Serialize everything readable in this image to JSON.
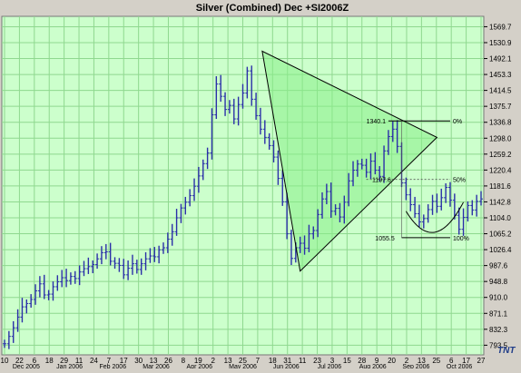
{
  "chart_data": {
    "type": "bar",
    "subtype": "ohlc",
    "title": "Silver (Combined) Dec +SI2006Z",
    "logo": "TNT",
    "ylim": [
      770.0,
      1595.0
    ],
    "y_ticks": [
      "1569.7",
      "1530.9",
      "1492.1",
      "1453.3",
      "1414.5",
      "1375.7",
      "1336.8",
      "1298.0",
      "1259.2",
      "1220.4",
      "1181.6",
      "1142.8",
      "1104.0",
      "1065.2",
      "1026.4",
      "987.6",
      "948.8",
      "910.0",
      "871.1",
      "832.3",
      "793.5"
    ],
    "grid": true,
    "colors": {
      "page": "#d4d0c8",
      "plot_bg": "#ccffcc",
      "grid": "#8fd88f",
      "bars": "#2b2fa8",
      "triangle_fill": "#88ee88",
      "lines": "#000000"
    },
    "x_day_ticks": [
      "10",
      "22",
      "6",
      "18",
      "29",
      "11",
      "24",
      "7",
      "17",
      "30",
      "13",
      "26",
      "8",
      "19",
      "2",
      "13",
      "25",
      "7",
      "18",
      "31",
      "11",
      "23",
      "3",
      "15",
      "28",
      "9",
      "20",
      "2",
      "13",
      "25",
      "6",
      "17",
      "27"
    ],
    "x_month_labels": [
      "Dec 2005",
      "Jan 2006",
      "Feb 2006",
      "Mar 2006",
      "Apr 2006",
      "May 2006",
      "Jun 2006",
      "Jul 2006",
      "Aug 2006",
      "Sep 2006",
      "Oct 2006"
    ],
    "series": [
      {
        "type": "ohlc",
        "points": [
          [
            0,
            797
          ],
          [
            5,
            815
          ],
          [
            10,
            836
          ],
          [
            15,
            862
          ],
          [
            20,
            887
          ],
          [
            25,
            895
          ],
          [
            30,
            905
          ],
          [
            35,
            926
          ],
          [
            40,
            943
          ],
          [
            45,
            916
          ],
          [
            50,
            918
          ],
          [
            55,
            936
          ],
          [
            60,
            948
          ],
          [
            65,
            958
          ],
          [
            70,
            951
          ],
          [
            75,
            961
          ],
          [
            80,
            956
          ],
          [
            85,
            972
          ],
          [
            90,
            980
          ],
          [
            95,
            985
          ],
          [
            100,
            990
          ],
          [
            105,
            1004
          ],
          [
            110,
            1019
          ],
          [
            115,
            1021
          ],
          [
            120,
            998
          ],
          [
            125,
            993
          ],
          [
            130,
            988
          ],
          [
            135,
            965
          ],
          [
            140,
            981
          ],
          [
            145,
            992
          ],
          [
            150,
            978
          ],
          [
            155,
            992
          ],
          [
            160,
            1004
          ],
          [
            165,
            1011
          ],
          [
            170,
            1009
          ],
          [
            175,
            1026
          ],
          [
            180,
            1031
          ],
          [
            185,
            1052
          ],
          [
            190,
            1070
          ],
          [
            195,
            1104
          ],
          [
            200,
            1128
          ],
          [
            205,
            1142
          ],
          [
            210,
            1158
          ],
          [
            215,
            1181
          ],
          [
            220,
            1206
          ],
          [
            225,
            1236
          ],
          [
            230,
            1262
          ],
          [
            235,
            1355
          ],
          [
            240,
            1430
          ],
          [
            245,
            1400
          ],
          [
            250,
            1368
          ],
          [
            255,
            1378
          ],
          [
            260,
            1345
          ],
          [
            265,
            1380
          ],
          [
            270,
            1408
          ],
          [
            275,
            1462
          ],
          [
            280,
            1393
          ],
          [
            285,
            1353
          ],
          [
            290,
            1320
          ],
          [
            295,
            1300
          ],
          [
            300,
            1280
          ],
          [
            305,
            1252
          ],
          [
            310,
            1200
          ],
          [
            315,
            1143
          ],
          [
            320,
            1065
          ],
          [
            325,
            1005
          ],
          [
            330,
            1031
          ],
          [
            335,
            1042
          ],
          [
            340,
            1030
          ],
          [
            345,
            1065
          ],
          [
            350,
            1073
          ],
          [
            355,
            1112
          ],
          [
            360,
            1150
          ],
          [
            365,
            1168
          ],
          [
            370,
            1120
          ],
          [
            375,
            1127
          ],
          [
            380,
            1106
          ],
          [
            385,
            1142
          ],
          [
            390,
            1194
          ],
          [
            395,
            1220
          ],
          [
            400,
            1235
          ],
          [
            405,
            1232
          ],
          [
            410,
            1215
          ],
          [
            415,
            1242
          ],
          [
            420,
            1220
          ],
          [
            425,
            1205
          ],
          [
            430,
            1267
          ],
          [
            435,
            1302
          ],
          [
            440,
            1320
          ],
          [
            445,
            1278
          ],
          [
            450,
            1189
          ],
          [
            455,
            1160
          ],
          [
            460,
            1136
          ],
          [
            465,
            1114
          ],
          [
            470,
            1094
          ],
          [
            475,
            1102
          ],
          [
            480,
            1124
          ],
          [
            485,
            1144
          ],
          [
            490,
            1132
          ],
          [
            495,
            1153
          ],
          [
            500,
            1178
          ],
          [
            505,
            1147
          ],
          [
            510,
            1110
          ],
          [
            515,
            1076
          ],
          [
            520,
            1105
          ],
          [
            525,
            1134
          ],
          [
            530,
            1123
          ],
          [
            535,
            1144
          ],
          [
            540,
            1150
          ]
        ]
      }
    ],
    "overlays": {
      "triangle": [
        [
          292,
          1510
        ],
        [
          335,
          974
        ],
        [
          490,
          1300
        ]
      ],
      "triangle_apex_label": "1340.1",
      "level_0_pct": {
        "label": "0%",
        "value": 1340.1
      },
      "level_50_pct": {
        "label": "50%",
        "value": 1197.6
      },
      "level_100_pct": {
        "label": "100%",
        "value": 1055.5
      },
      "value_labels": [
        "1340.1",
        "1197.6",
        "1055.5"
      ],
      "rounding_bottom_arc": {
        "from": [
          455,
          1120
        ],
        "through": [
          487,
          1055
        ],
        "to": [
          520,
          1142
        ]
      }
    }
  }
}
